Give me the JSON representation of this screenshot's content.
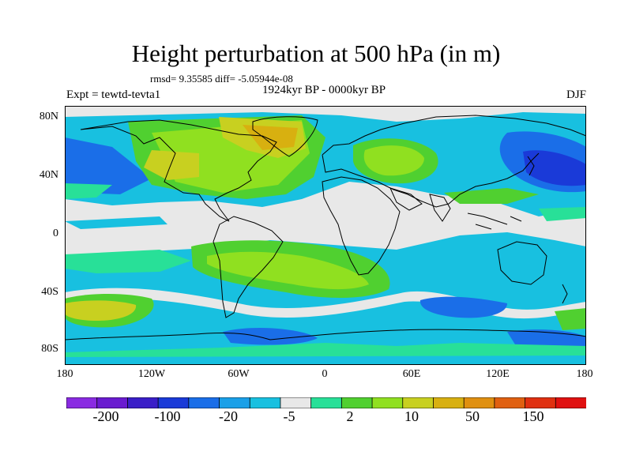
{
  "title": "Height perturbation at 500 hPa (in m)",
  "stats": "rmsd= 9.35585 diff= -5.05944e-08",
  "experiment": "Expt = tewtd-tevta1",
  "period": "1924kyr BP - 0000kyr BP",
  "season": "DJF",
  "map": {
    "lat_labels": [
      "80N",
      "40N",
      "0",
      "40S",
      "80S"
    ],
    "lon_labels": [
      "180",
      "120W",
      "60W",
      "0",
      "60E",
      "120E",
      "180"
    ],
    "background": "#e8e8e8"
  },
  "colorbar": {
    "labels": [
      "-200",
      "-100",
      "-20",
      "-5",
      "2",
      "10",
      "50",
      "150"
    ],
    "colors": [
      "#8a2be2",
      "#6a1bd0",
      "#3a1ec8",
      "#1a3ad8",
      "#1a6ee8",
      "#1aa0e8",
      "#18c0e0",
      "#e8e8e8",
      "#28e098",
      "#50d030",
      "#90e020",
      "#c8d020",
      "#d8b010",
      "#e09010",
      "#e06010",
      "#e03010",
      "#e01010"
    ]
  }
}
